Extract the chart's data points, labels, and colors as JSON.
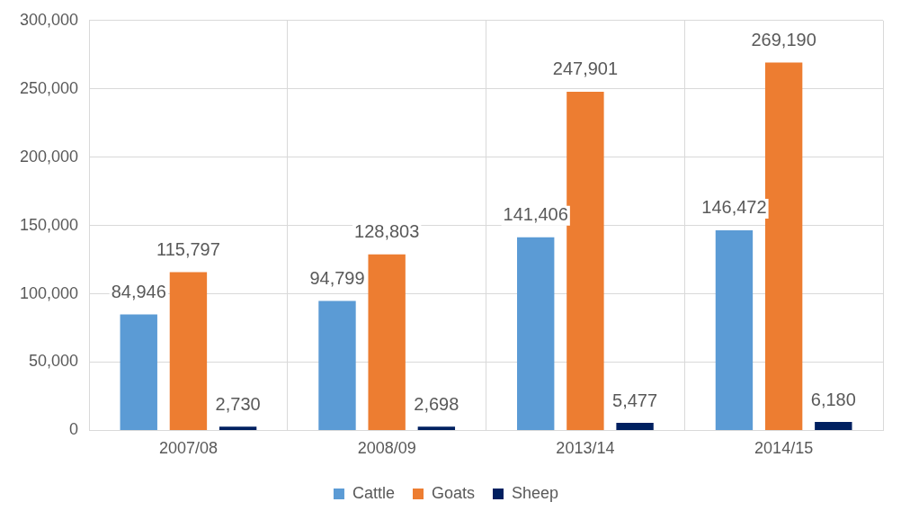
{
  "chart_data": {
    "type": "bar",
    "categories": [
      "2007/08",
      "2008/09",
      "2013/14",
      "2014/15"
    ],
    "series": [
      {
        "name": "Cattle",
        "color": "#5b9bd5",
        "values": [
          84946,
          94799,
          141406,
          146472
        ],
        "value_labels": [
          "84,946",
          "94,799",
          "141,406",
          "146,472"
        ]
      },
      {
        "name": "Goats",
        "color": "#ed7d31",
        "values": [
          115797,
          128803,
          247901,
          269190
        ],
        "value_labels": [
          "115,797",
          "128,803",
          "247,901",
          "269,190"
        ]
      },
      {
        "name": "Sheep",
        "color": "#002060",
        "values": [
          2730,
          2698,
          5477,
          6180
        ],
        "value_labels": [
          "2,730",
          "2,698",
          "5,477",
          "6,180"
        ]
      }
    ],
    "ylim": [
      0,
      300000
    ],
    "yticks": [
      {
        "value": 0,
        "label": "0"
      },
      {
        "value": 50000,
        "label": "50,000"
      },
      {
        "value": 100000,
        "label": "100,000"
      },
      {
        "value": 150000,
        "label": "150,000"
      },
      {
        "value": 200000,
        "label": "200,000"
      },
      {
        "value": 250000,
        "label": "250,000"
      },
      {
        "value": 300000,
        "label": "300,000"
      }
    ],
    "grid": true,
    "legend": "bottom"
  }
}
